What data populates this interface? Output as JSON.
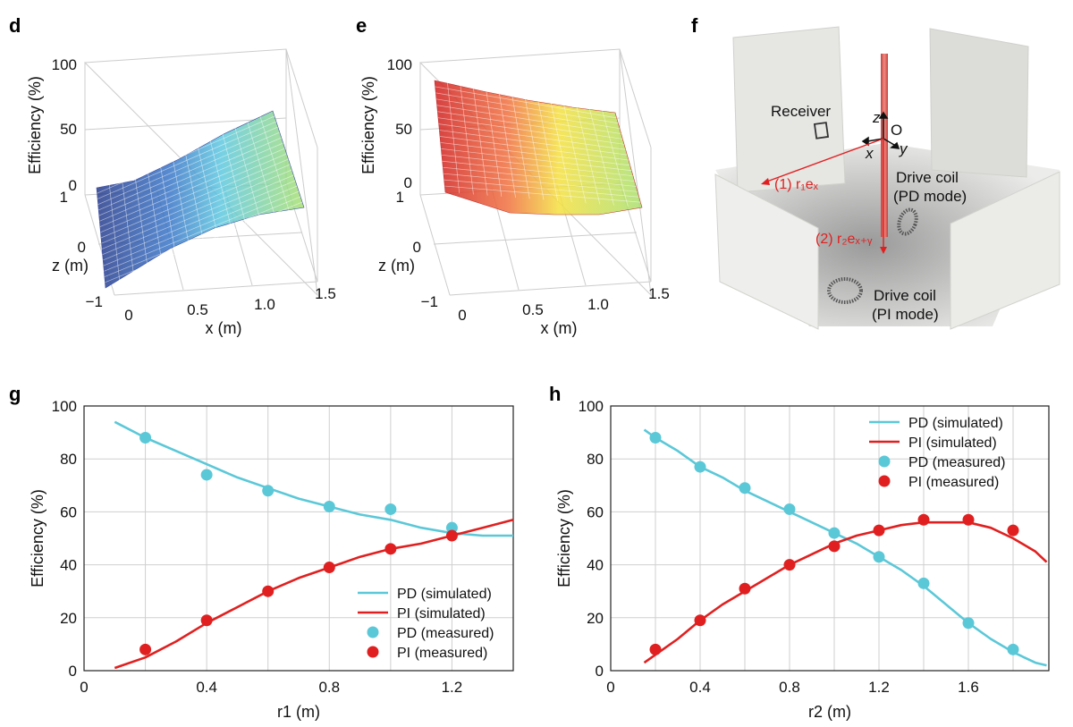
{
  "panels": {
    "d": "d",
    "e": "e",
    "f": "f",
    "g": "g",
    "h": "h"
  },
  "surface_axes": {
    "z_label": "Efficiency (%)",
    "x_label": "x (m)",
    "y_label": "z (m)",
    "z_ticks": [
      "0",
      "50",
      "100"
    ],
    "x_ticks": [
      "0",
      "0.5",
      "1.0",
      "1.5"
    ],
    "y_ticks": [
      "−1",
      "0",
      "1"
    ]
  },
  "diagram_f": {
    "receiver": "Receiver",
    "origin": "O",
    "axis_z": "z",
    "axis_x": "x",
    "axis_y": "y",
    "drive_pd_line1": "Drive coil",
    "drive_pd_line2": "(PD mode)",
    "drive_pi_line1": "Drive coil",
    "drive_pi_line2": "(PI mode)",
    "path1": "(1) r₁eₓ",
    "path2": "(2) r₂eₓ₊ᵧ"
  },
  "colors": {
    "pd": "#5bc8d8",
    "pi": "#e02020",
    "grid": "#cfcfcf"
  },
  "chart_data": [
    {
      "type": "surface",
      "panel": "d",
      "xlabel": "x (m)",
      "ylabel": "z (m)",
      "zlabel": "Efficiency (%)",
      "xlim": [
        0,
        1.5
      ],
      "ylim": [
        -1,
        1
      ],
      "zlim": [
        0,
        100
      ],
      "colormap": "blue-to-green",
      "description_values": {
        "at_x0": 20,
        "at_x1.5": 60
      }
    },
    {
      "type": "surface",
      "panel": "e",
      "xlabel": "x (m)",
      "ylabel": "z (m)",
      "zlabel": "Efficiency (%)",
      "xlim": [
        0,
        1.5
      ],
      "ylim": [
        -1,
        1
      ],
      "zlim": [
        0,
        100
      ],
      "colormap": "red-to-green",
      "description_values": {
        "at_x0": 85,
        "at_x1.5": 45
      }
    },
    {
      "type": "line",
      "panel": "g",
      "xlabel": "r1 (m)",
      "ylabel": "Efficiency (%)",
      "xlim": [
        0,
        1.4
      ],
      "ylim": [
        0,
        100
      ],
      "xticks": [
        "0",
        "0.4",
        "0.8",
        "1.2"
      ],
      "yticks": [
        "0",
        "20",
        "40",
        "60",
        "80",
        "100"
      ],
      "grid": true,
      "legend": "bottom-right",
      "series": [
        {
          "name": "PD (simulated)",
          "kind": "line",
          "color": "#5bc8d8",
          "x": [
            0.1,
            0.2,
            0.3,
            0.4,
            0.5,
            0.6,
            0.7,
            0.8,
            0.9,
            1.0,
            1.1,
            1.2,
            1.3,
            1.4
          ],
          "y": [
            94,
            88,
            83,
            78,
            73,
            69,
            65,
            62,
            59,
            57,
            54,
            52,
            51,
            51
          ]
        },
        {
          "name": "PI (simulated)",
          "kind": "line",
          "color": "#e02020",
          "x": [
            0.1,
            0.2,
            0.3,
            0.4,
            0.5,
            0.6,
            0.7,
            0.8,
            0.9,
            1.0,
            1.1,
            1.2,
            1.3,
            1.4
          ],
          "y": [
            1,
            5,
            11,
            18,
            24,
            30,
            35,
            39,
            43,
            46,
            48,
            51,
            54,
            57
          ]
        },
        {
          "name": "PD (measured)",
          "kind": "scatter",
          "color": "#5bc8d8",
          "x": [
            0.2,
            0.4,
            0.6,
            0.8,
            1.0,
            1.2
          ],
          "y": [
            88,
            74,
            68,
            62,
            61,
            54
          ]
        },
        {
          "name": "PI (measured)",
          "kind": "scatter",
          "color": "#e02020",
          "x": [
            0.2,
            0.4,
            0.6,
            0.8,
            1.0,
            1.2
          ],
          "y": [
            8,
            19,
            30,
            39,
            46,
            51
          ]
        }
      ]
    },
    {
      "type": "line",
      "panel": "h",
      "xlabel": "r2 (m)",
      "ylabel": "Efficiency (%)",
      "xlim": [
        0,
        1.96
      ],
      "ylim": [
        0,
        100
      ],
      "xticks": [
        "0",
        "0.4",
        "0.8",
        "1.2",
        "1.6"
      ],
      "yticks": [
        "0",
        "20",
        "40",
        "60",
        "80",
        "100"
      ],
      "grid": true,
      "legend": "top-right",
      "series": [
        {
          "name": "PD (simulated)",
          "kind": "line",
          "color": "#5bc8d8",
          "x": [
            0.15,
            0.2,
            0.3,
            0.4,
            0.5,
            0.6,
            0.7,
            0.8,
            0.9,
            1.0,
            1.1,
            1.2,
            1.3,
            1.4,
            1.5,
            1.6,
            1.7,
            1.8,
            1.9,
            1.95
          ],
          "y": [
            91,
            88,
            83,
            77,
            73,
            68,
            64,
            60,
            56,
            52,
            48,
            43,
            38,
            32,
            25,
            18,
            12,
            7,
            3,
            2
          ]
        },
        {
          "name": "PI (simulated)",
          "kind": "line",
          "color": "#e02020",
          "x": [
            0.15,
            0.2,
            0.3,
            0.4,
            0.5,
            0.6,
            0.7,
            0.8,
            0.9,
            1.0,
            1.1,
            1.2,
            1.3,
            1.4,
            1.5,
            1.6,
            1.7,
            1.8,
            1.9,
            1.95
          ],
          "y": [
            3,
            6,
            12,
            19,
            25,
            30,
            35,
            40,
            44,
            48,
            51,
            53,
            55,
            56,
            56,
            56,
            54,
            50,
            45,
            41
          ]
        },
        {
          "name": "PD (measured)",
          "kind": "scatter",
          "color": "#5bc8d8",
          "x": [
            0.2,
            0.4,
            0.6,
            0.8,
            1.0,
            1.2,
            1.4,
            1.6,
            1.8
          ],
          "y": [
            88,
            77,
            69,
            61,
            52,
            43,
            33,
            18,
            8
          ]
        },
        {
          "name": "PI (measured)",
          "kind": "scatter",
          "color": "#e02020",
          "x": [
            0.2,
            0.4,
            0.6,
            0.8,
            1.0,
            1.2,
            1.4,
            1.6,
            1.8
          ],
          "y": [
            8,
            19,
            31,
            40,
            47,
            53,
            57,
            57,
            53
          ]
        }
      ]
    }
  ]
}
